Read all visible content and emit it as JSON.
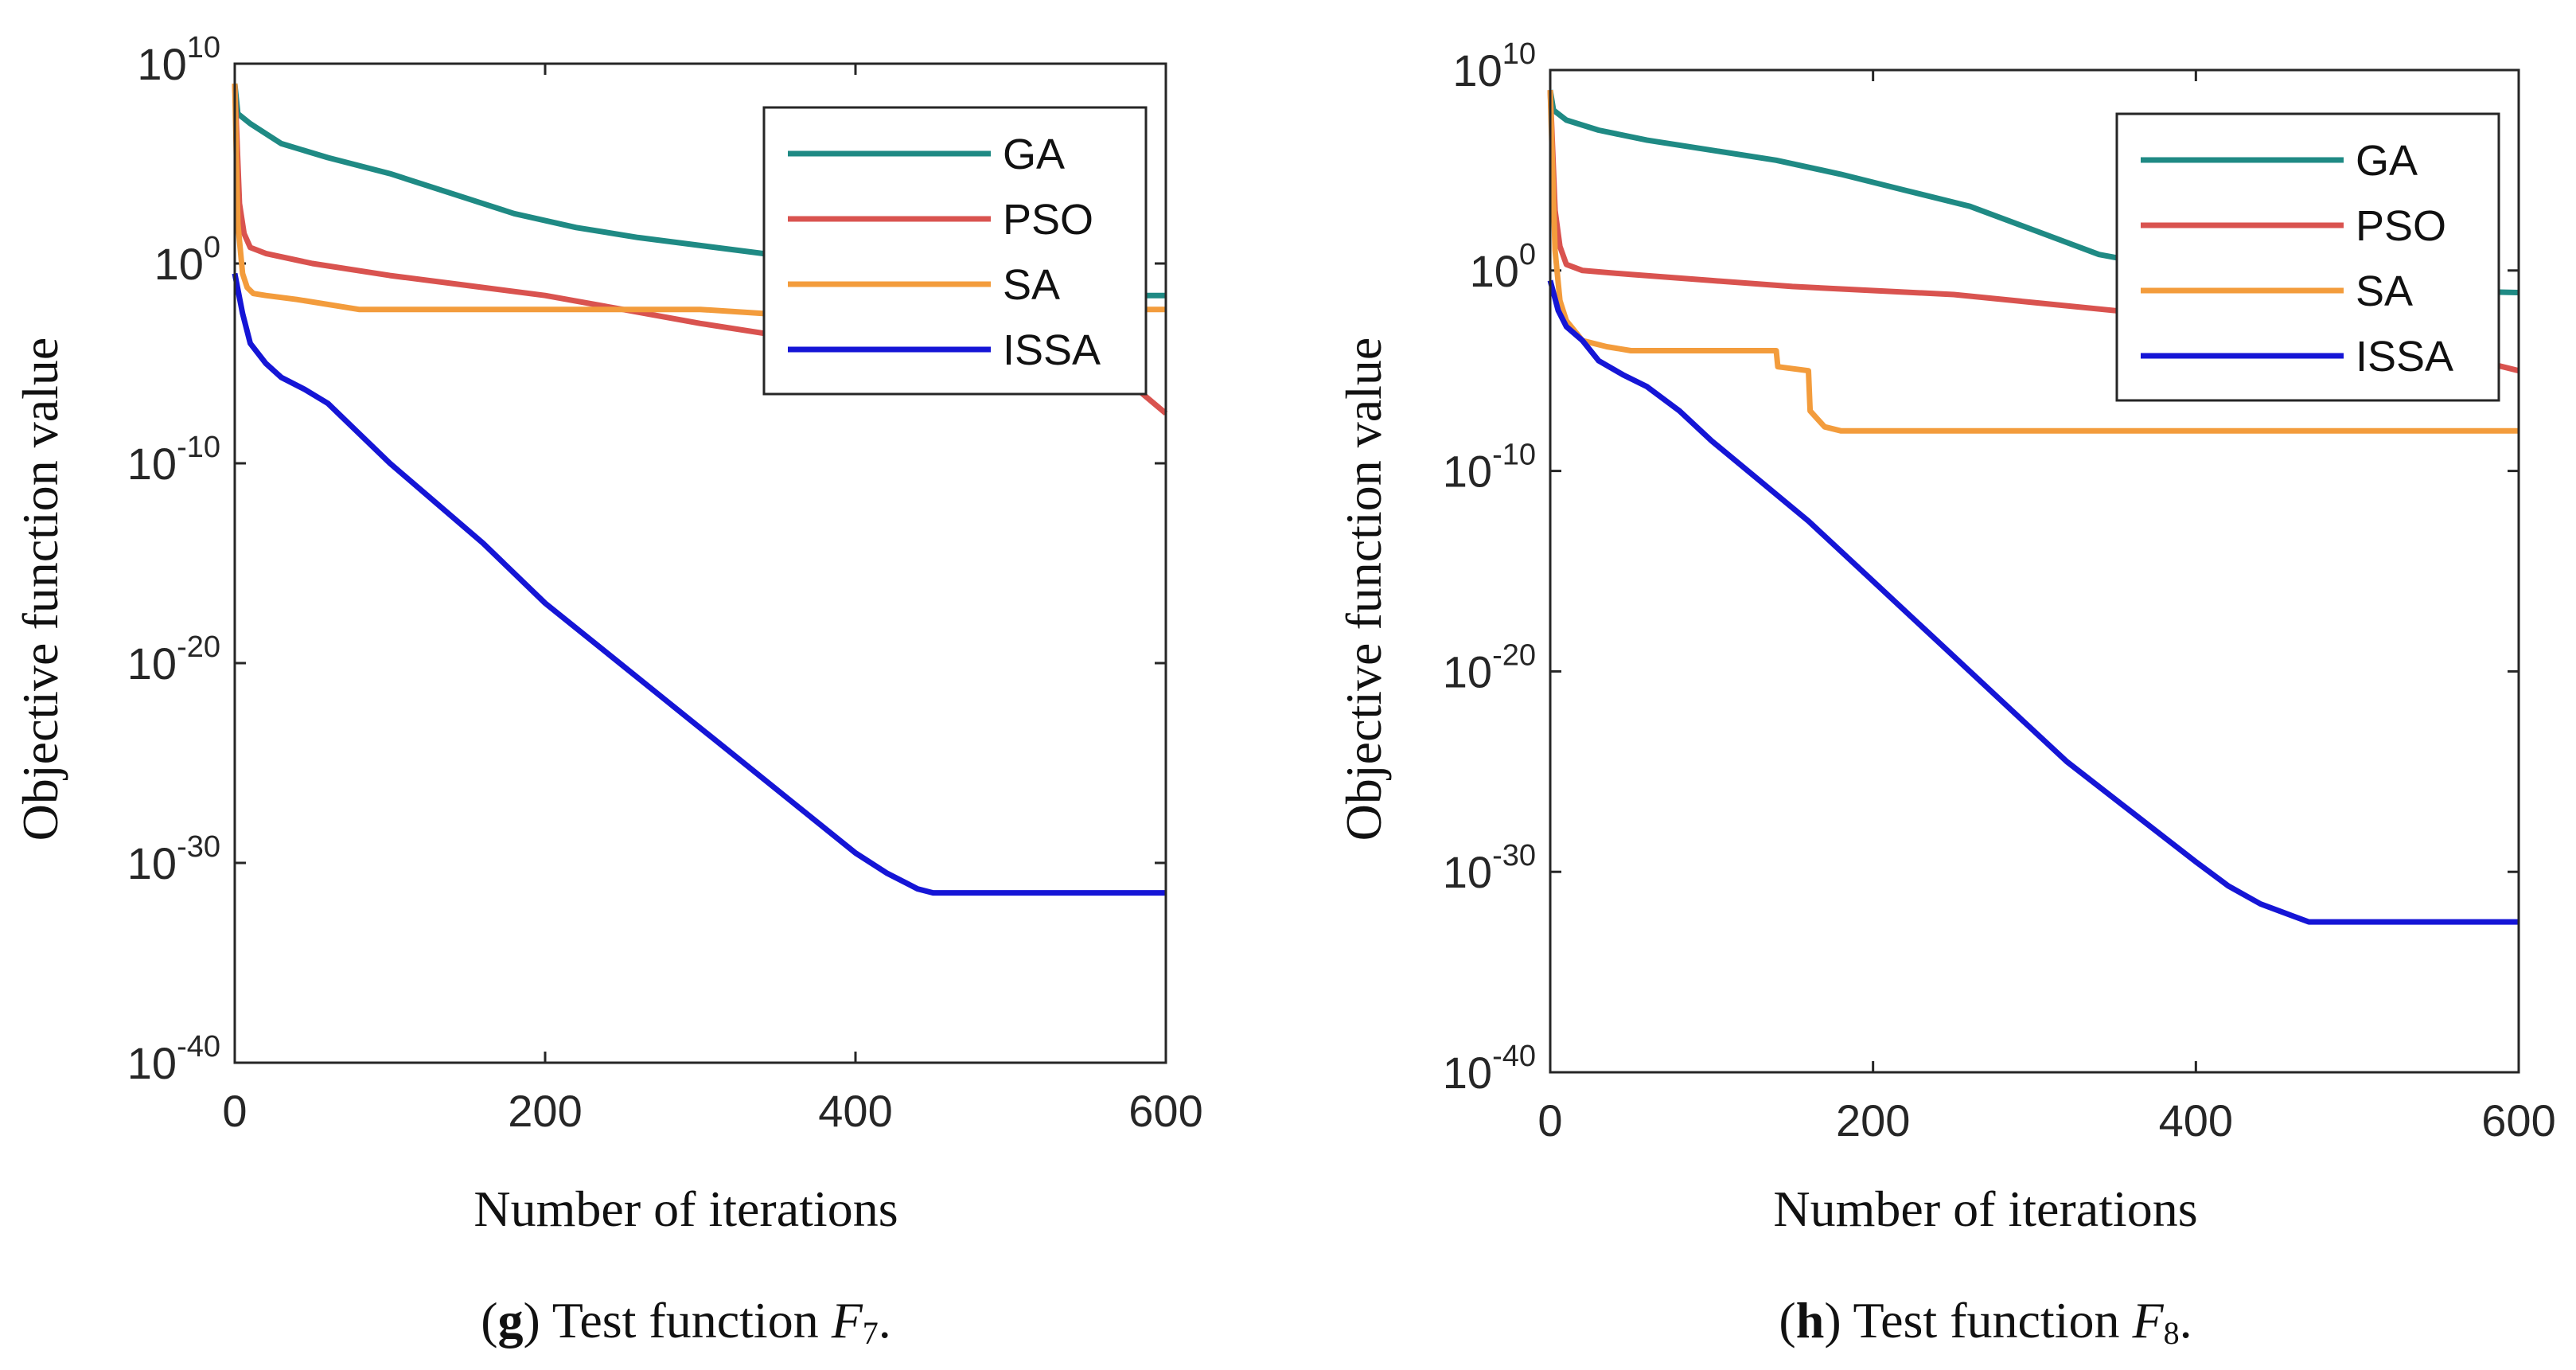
{
  "colors": {
    "GA": "#1f8a84",
    "PSO": "#d9534f",
    "SA": "#f39c3c",
    "ISSA": "#1515d6",
    "axis": "#262626"
  },
  "chart_data": [
    {
      "type": "line",
      "yscale": "log",
      "xlabel": "Number of iterations",
      "ylabel": "Objective function value",
      "xlim": [
        0,
        600
      ],
      "ylim_exponent": [
        -40,
        10
      ],
      "x_ticks": [
        "0",
        "200",
        "400",
        "600"
      ],
      "y_ticks": [
        {
          "base": "10",
          "exp": "10"
        },
        {
          "base": "10",
          "exp": "0"
        },
        {
          "base": "10",
          "exp": "-10"
        },
        {
          "base": "10",
          "exp": "-20"
        },
        {
          "base": "10",
          "exp": "-30"
        },
        {
          "base": "10",
          "exp": "-40"
        }
      ],
      "legend": {
        "position": "top-right",
        "entries": [
          "GA",
          "PSO",
          "SA",
          "ISSA"
        ]
      },
      "caption": {
        "letter": "g",
        "text": "Test function ",
        "fn": "F",
        "sub": "7",
        "end": "."
      },
      "series": [
        {
          "name": "GA",
          "x": [
            0,
            2,
            10,
            30,
            60,
            100,
            140,
            180,
            220,
            260,
            300,
            340,
            380,
            420,
            460,
            500,
            540,
            580,
            600
          ],
          "log10y": [
            9,
            7.5,
            7,
            6,
            5.3,
            4.5,
            3.5,
            2.5,
            1.8,
            1.3,
            0.9,
            0.5,
            0,
            -0.8,
            -1.3,
            -1.5,
            -1.6,
            -1.6,
            -1.6
          ]
        },
        {
          "name": "PSO",
          "x": [
            0,
            3,
            6,
            10,
            20,
            50,
            100,
            150,
            200,
            250,
            300,
            350,
            400,
            450,
            500,
            550,
            580,
            600
          ],
          "log10y": [
            9,
            3,
            1.5,
            0.8,
            0.5,
            0,
            -0.6,
            -1.1,
            -1.6,
            -2.3,
            -3,
            -3.6,
            -4,
            -4.3,
            -4.6,
            -5,
            -6.2,
            -7.5
          ]
        },
        {
          "name": "SA",
          "x": [
            0,
            2,
            5,
            8,
            12,
            20,
            40,
            80,
            120,
            200,
            300,
            360,
            400,
            500,
            600
          ],
          "log10y": [
            9,
            2,
            -0.5,
            -1.2,
            -1.5,
            -1.6,
            -1.8,
            -2.3,
            -2.3,
            -2.3,
            -2.3,
            -2.6,
            -2.8,
            -2.3,
            -2.3
          ]
        },
        {
          "name": "ISSA",
          "x": [
            0,
            5,
            10,
            20,
            30,
            45,
            60,
            80,
            100,
            130,
            160,
            200,
            240,
            280,
            320,
            360,
            400,
            420,
            440,
            450,
            470,
            500,
            600
          ],
          "log10y": [
            -0.5,
            -2.5,
            -4,
            -5,
            -5.7,
            -6.3,
            -7,
            -8.5,
            -10,
            -12,
            -14,
            -17,
            -19.5,
            -22,
            -24.5,
            -27,
            -29.5,
            -30.5,
            -31.3,
            -31.5,
            -31.5,
            -31.5,
            -31.5
          ]
        }
      ]
    },
    {
      "type": "line",
      "yscale": "log",
      "xlabel": "Number of iterations",
      "ylabel": "Objective function value",
      "xlim": [
        0,
        600
      ],
      "ylim_exponent": [
        -40,
        10
      ],
      "x_ticks": [
        "0",
        "200",
        "400",
        "600"
      ],
      "y_ticks": [
        {
          "base": "10",
          "exp": "10"
        },
        {
          "base": "10",
          "exp": "0"
        },
        {
          "base": "10",
          "exp": "-10"
        },
        {
          "base": "10",
          "exp": "-20"
        },
        {
          "base": "10",
          "exp": "-30"
        },
        {
          "base": "10",
          "exp": "-40"
        }
      ],
      "legend": {
        "position": "top-right",
        "entries": [
          "GA",
          "PSO",
          "SA",
          "ISSA"
        ]
      },
      "caption": {
        "letter": "h",
        "text": "Test function ",
        "fn": "F",
        "sub": "8",
        "end": "."
      },
      "series": [
        {
          "name": "GA",
          "x": [
            0,
            2,
            10,
            30,
            60,
            100,
            140,
            180,
            220,
            260,
            300,
            340,
            360,
            380,
            420,
            460,
            500,
            540,
            600
          ],
          "log10y": [
            9,
            8,
            7.5,
            7,
            6.5,
            6,
            5.5,
            4.8,
            4,
            3.2,
            2,
            0.8,
            0.5,
            0.2,
            -0.2,
            -0.5,
            -0.8,
            -1,
            -1.1
          ]
        },
        {
          "name": "PSO",
          "x": [
            0,
            3,
            6,
            10,
            20,
            50,
            100,
            150,
            200,
            250,
            300,
            350,
            400,
            450,
            500,
            550,
            580,
            600
          ],
          "log10y": [
            9,
            3,
            1.2,
            0.3,
            0,
            -0.2,
            -0.5,
            -0.8,
            -1,
            -1.2,
            -1.6,
            -2,
            -2.4,
            -2.8,
            -3.2,
            -3.8,
            -4.6,
            -5
          ]
        },
        {
          "name": "SA",
          "x": [
            0,
            3,
            6,
            10,
            20,
            35,
            50,
            80,
            140,
            141,
            160,
            161,
            170,
            180,
            600
          ],
          "log10y": [
            9,
            1,
            -1.5,
            -2.5,
            -3.5,
            -3.8,
            -4,
            -4,
            -4,
            -4.8,
            -5,
            -7,
            -7.8,
            -8,
            -8
          ]
        },
        {
          "name": "ISSA",
          "x": [
            0,
            5,
            10,
            20,
            30,
            45,
            60,
            80,
            100,
            130,
            160,
            200,
            240,
            280,
            320,
            360,
            400,
            420,
            440,
            460,
            470,
            500,
            600
          ],
          "log10y": [
            -0.5,
            -2,
            -2.8,
            -3.5,
            -4.5,
            -5.2,
            -5.8,
            -7,
            -8.5,
            -10.5,
            -12.5,
            -15.5,
            -18.5,
            -21.5,
            -24.5,
            -27,
            -29.5,
            -30.7,
            -31.6,
            -32.2,
            -32.5,
            -32.5,
            -32.5
          ]
        }
      ]
    }
  ]
}
